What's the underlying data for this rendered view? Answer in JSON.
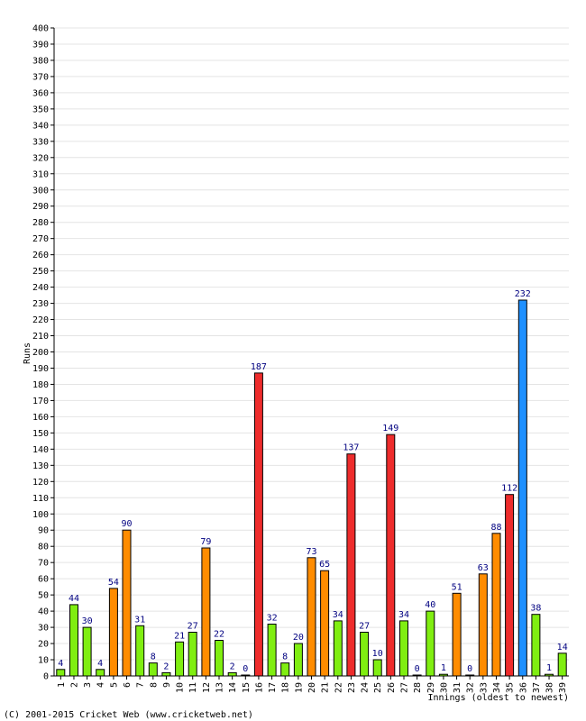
{
  "chart_data": {
    "type": "bar",
    "ylabel": "Runs",
    "xlabel": "Innings (oldest to newest)",
    "ylim": [
      0,
      400
    ],
    "y_tick_step": 10,
    "grid": true,
    "categories": [
      "1",
      "2",
      "3",
      "4",
      "5",
      "6",
      "7",
      "8",
      "9",
      "10",
      "11",
      "12",
      "13",
      "14",
      "15",
      "16",
      "17",
      "18",
      "19",
      "20",
      "21",
      "22",
      "23",
      "24",
      "25",
      "26",
      "27",
      "28",
      "29",
      "30",
      "31",
      "32",
      "33",
      "34",
      "35",
      "36",
      "37",
      "38",
      "39"
    ],
    "values": [
      4,
      44,
      30,
      4,
      54,
      90,
      31,
      8,
      2,
      21,
      27,
      79,
      22,
      2,
      0,
      187,
      32,
      8,
      20,
      73,
      65,
      34,
      137,
      27,
      10,
      149,
      34,
      0,
      40,
      1,
      51,
      0,
      63,
      88,
      112,
      232,
      38,
      1,
      14
    ],
    "bar_colors": {
      "under_50": "#80ee11",
      "50_to_99": "#ff8c00",
      "100_to_199": "#ee2c2c",
      "200_plus": "#1e90ff"
    },
    "label_color": "#000080"
  },
  "footer": {
    "copyright": "(C) 2001-2015 Cricket Web (www.cricketweb.net)"
  }
}
